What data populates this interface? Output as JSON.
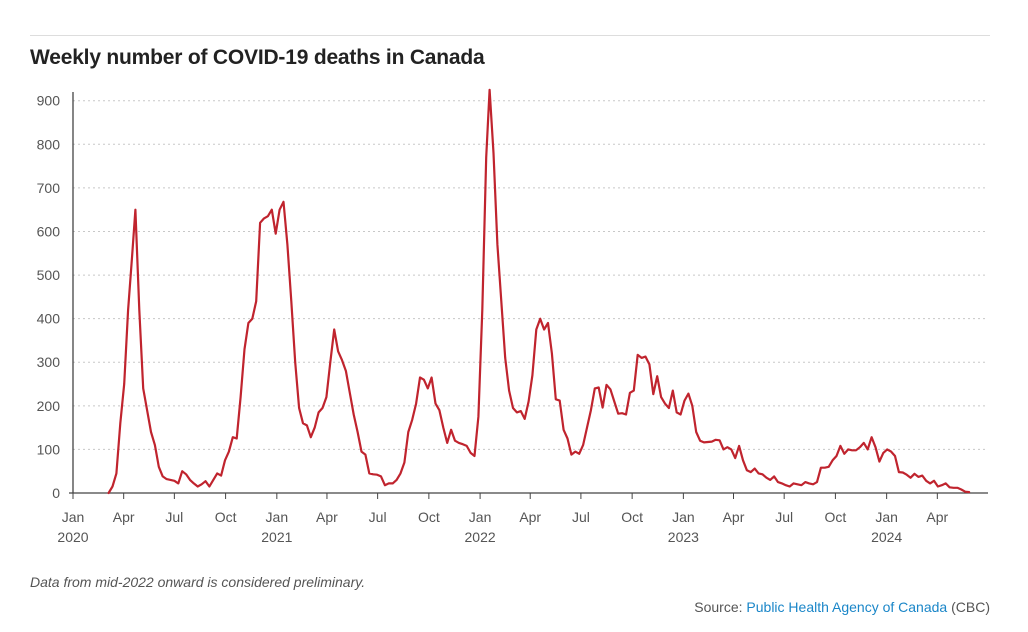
{
  "header": {
    "title": "Weekly number of COVID-19 deaths in Canada"
  },
  "footer": {
    "note": "Data from mid-2022 onward is considered preliminary.",
    "source_prefix": "Source:",
    "source_link": "Public Health Agency of Canada",
    "source_suffix": "(CBC)"
  },
  "chart_data": {
    "type": "line",
    "title": "Weekly number of COVID-19 deaths in Canada",
    "xlabel": "",
    "ylabel": "",
    "x_range": [
      "2020-01-01",
      "2024-07-01"
    ],
    "ylim": [
      0,
      920
    ],
    "y_ticks": [
      0,
      100,
      200,
      300,
      400,
      500,
      600,
      700,
      800,
      900
    ],
    "x_ticks": [
      {
        "date": "2020-01-01",
        "label": "Jan",
        "year": "2020"
      },
      {
        "date": "2020-04-01",
        "label": "Apr",
        "year": ""
      },
      {
        "date": "2020-07-01",
        "label": "Jul",
        "year": ""
      },
      {
        "date": "2020-10-01",
        "label": "Oct",
        "year": ""
      },
      {
        "date": "2021-01-01",
        "label": "Jan",
        "year": "2021"
      },
      {
        "date": "2021-04-01",
        "label": "Apr",
        "year": ""
      },
      {
        "date": "2021-07-01",
        "label": "Jul",
        "year": ""
      },
      {
        "date": "2021-10-01",
        "label": "Oct",
        "year": ""
      },
      {
        "date": "2022-01-01",
        "label": "Jan",
        "year": "2022"
      },
      {
        "date": "2022-04-01",
        "label": "Apr",
        "year": ""
      },
      {
        "date": "2022-07-01",
        "label": "Jul",
        "year": ""
      },
      {
        "date": "2022-10-01",
        "label": "Oct",
        "year": ""
      },
      {
        "date": "2023-01-01",
        "label": "Jan",
        "year": "2023"
      },
      {
        "date": "2023-04-01",
        "label": "Apr",
        "year": ""
      },
      {
        "date": "2023-07-01",
        "label": "Jul",
        "year": ""
      },
      {
        "date": "2023-10-01",
        "label": "Oct",
        "year": ""
      },
      {
        "date": "2024-01-01",
        "label": "Jan",
        "year": "2024"
      },
      {
        "date": "2024-04-01",
        "label": "Apr",
        "year": ""
      }
    ],
    "grid": "horizontal dashed",
    "line_color": "#c0242e",
    "series": [
      {
        "points": [
          [
            "2020-03-05",
            0
          ],
          [
            "2020-03-12",
            15
          ],
          [
            "2020-03-19",
            45
          ],
          [
            "2020-03-26",
            160
          ],
          [
            "2020-04-02",
            250
          ],
          [
            "2020-04-09",
            420
          ],
          [
            "2020-04-16",
            540
          ],
          [
            "2020-04-22",
            650
          ],
          [
            "2020-04-29",
            420
          ],
          [
            "2020-05-06",
            240
          ],
          [
            "2020-05-13",
            190
          ],
          [
            "2020-05-20",
            140
          ],
          [
            "2020-05-27",
            110
          ],
          [
            "2020-06-03",
            60
          ],
          [
            "2020-06-10",
            38
          ],
          [
            "2020-06-17",
            32
          ],
          [
            "2020-06-24",
            30
          ],
          [
            "2020-07-01",
            28
          ],
          [
            "2020-07-08",
            22
          ],
          [
            "2020-07-15",
            50
          ],
          [
            "2020-07-22",
            43
          ],
          [
            "2020-07-29",
            30
          ],
          [
            "2020-08-05",
            22
          ],
          [
            "2020-08-12",
            15
          ],
          [
            "2020-08-19",
            20
          ],
          [
            "2020-08-26",
            27
          ],
          [
            "2020-09-02",
            15
          ],
          [
            "2020-09-09",
            30
          ],
          [
            "2020-09-16",
            45
          ],
          [
            "2020-09-23",
            40
          ],
          [
            "2020-09-30",
            75
          ],
          [
            "2020-10-07",
            95
          ],
          [
            "2020-10-14",
            128
          ],
          [
            "2020-10-21",
            125
          ],
          [
            "2020-10-28",
            220
          ],
          [
            "2020-11-04",
            330
          ],
          [
            "2020-11-11",
            390
          ],
          [
            "2020-11-18",
            400
          ],
          [
            "2020-11-25",
            440
          ],
          [
            "2020-12-02",
            620
          ],
          [
            "2020-12-09",
            630
          ],
          [
            "2020-12-16",
            635
          ],
          [
            "2020-12-23",
            650
          ],
          [
            "2020-12-30",
            595
          ],
          [
            "2021-01-06",
            650
          ],
          [
            "2021-01-13",
            668
          ],
          [
            "2021-01-20",
            570
          ],
          [
            "2021-01-27",
            440
          ],
          [
            "2021-02-03",
            300
          ],
          [
            "2021-02-10",
            195
          ],
          [
            "2021-02-17",
            160
          ],
          [
            "2021-02-24",
            155
          ],
          [
            "2021-03-03",
            128
          ],
          [
            "2021-03-10",
            150
          ],
          [
            "2021-03-17",
            185
          ],
          [
            "2021-03-24",
            195
          ],
          [
            "2021-03-31",
            220
          ],
          [
            "2021-04-07",
            300
          ],
          [
            "2021-04-14",
            375
          ],
          [
            "2021-04-21",
            325
          ],
          [
            "2021-04-28",
            305
          ],
          [
            "2021-05-05",
            280
          ],
          [
            "2021-05-12",
            230
          ],
          [
            "2021-05-19",
            180
          ],
          [
            "2021-05-26",
            140
          ],
          [
            "2021-06-02",
            95
          ],
          [
            "2021-06-09",
            88
          ],
          [
            "2021-06-16",
            45
          ],
          [
            "2021-06-23",
            43
          ],
          [
            "2021-06-30",
            42
          ],
          [
            "2021-07-07",
            38
          ],
          [
            "2021-07-14",
            18
          ],
          [
            "2021-07-21",
            22
          ],
          [
            "2021-07-28",
            22
          ],
          [
            "2021-08-04",
            30
          ],
          [
            "2021-08-11",
            45
          ],
          [
            "2021-08-18",
            70
          ],
          [
            "2021-08-25",
            140
          ],
          [
            "2021-09-01",
            168
          ],
          [
            "2021-09-08",
            205
          ],
          [
            "2021-09-15",
            265
          ],
          [
            "2021-09-22",
            260
          ],
          [
            "2021-09-29",
            240
          ],
          [
            "2021-10-06",
            265
          ],
          [
            "2021-10-13",
            205
          ],
          [
            "2021-10-20",
            190
          ],
          [
            "2021-10-27",
            150
          ],
          [
            "2021-11-03",
            115
          ],
          [
            "2021-11-10",
            145
          ],
          [
            "2021-11-17",
            120
          ],
          [
            "2021-11-24",
            115
          ],
          [
            "2021-12-01",
            112
          ],
          [
            "2021-12-08",
            108
          ],
          [
            "2021-12-15",
            92
          ],
          [
            "2021-12-22",
            85
          ],
          [
            "2021-12-29",
            175
          ],
          [
            "2022-01-05",
            420
          ],
          [
            "2022-01-12",
            770
          ],
          [
            "2022-01-18",
            925
          ],
          [
            "2022-01-25",
            780
          ],
          [
            "2022-02-01",
            570
          ],
          [
            "2022-02-08",
            440
          ],
          [
            "2022-02-15",
            310
          ],
          [
            "2022-02-22",
            235
          ],
          [
            "2022-03-01",
            195
          ],
          [
            "2022-03-08",
            185
          ],
          [
            "2022-03-15",
            188
          ],
          [
            "2022-03-22",
            170
          ],
          [
            "2022-03-29",
            210
          ],
          [
            "2022-04-05",
            270
          ],
          [
            "2022-04-12",
            375
          ],
          [
            "2022-04-19",
            400
          ],
          [
            "2022-04-26",
            375
          ],
          [
            "2022-05-03",
            390
          ],
          [
            "2022-05-10",
            320
          ],
          [
            "2022-05-17",
            215
          ],
          [
            "2022-05-24",
            212
          ],
          [
            "2022-05-31",
            145
          ],
          [
            "2022-06-07",
            125
          ],
          [
            "2022-06-14",
            88
          ],
          [
            "2022-06-21",
            95
          ],
          [
            "2022-06-28",
            90
          ],
          [
            "2022-07-05",
            110
          ],
          [
            "2022-07-12",
            150
          ],
          [
            "2022-07-19",
            190
          ],
          [
            "2022-07-26",
            240
          ],
          [
            "2022-08-02",
            242
          ],
          [
            "2022-08-09",
            196
          ],
          [
            "2022-08-16",
            248
          ],
          [
            "2022-08-23",
            238
          ],
          [
            "2022-08-30",
            210
          ],
          [
            "2022-09-06",
            182
          ],
          [
            "2022-09-13",
            183
          ],
          [
            "2022-09-20",
            180
          ],
          [
            "2022-09-27",
            230
          ],
          [
            "2022-10-04",
            235
          ],
          [
            "2022-10-11",
            317
          ],
          [
            "2022-10-18",
            310
          ],
          [
            "2022-10-25",
            313
          ],
          [
            "2022-11-01",
            295
          ],
          [
            "2022-11-08",
            227
          ],
          [
            "2022-11-15",
            268
          ],
          [
            "2022-11-22",
            220
          ],
          [
            "2022-11-29",
            205
          ],
          [
            "2022-12-06",
            195
          ],
          [
            "2022-12-13",
            235
          ],
          [
            "2022-12-20",
            185
          ],
          [
            "2022-12-27",
            180
          ],
          [
            "2023-01-03",
            212
          ],
          [
            "2023-01-10",
            228
          ],
          [
            "2023-01-17",
            200
          ],
          [
            "2023-01-24",
            140
          ],
          [
            "2023-01-31",
            120
          ],
          [
            "2023-02-07",
            116
          ],
          [
            "2023-02-14",
            117
          ],
          [
            "2023-02-21",
            118
          ],
          [
            "2023-02-28",
            122
          ],
          [
            "2023-03-07",
            121
          ],
          [
            "2023-03-14",
            100
          ],
          [
            "2023-03-21",
            105
          ],
          [
            "2023-03-28",
            100
          ],
          [
            "2023-04-04",
            80
          ],
          [
            "2023-04-11",
            108
          ],
          [
            "2023-04-18",
            75
          ],
          [
            "2023-04-25",
            52
          ],
          [
            "2023-05-02",
            48
          ],
          [
            "2023-05-09",
            56
          ],
          [
            "2023-05-16",
            45
          ],
          [
            "2023-05-23",
            43
          ],
          [
            "2023-05-30",
            35
          ],
          [
            "2023-06-06",
            30
          ],
          [
            "2023-06-13",
            38
          ],
          [
            "2023-06-20",
            25
          ],
          [
            "2023-06-27",
            22
          ],
          [
            "2023-07-04",
            18
          ],
          [
            "2023-07-11",
            15
          ],
          [
            "2023-07-18",
            22
          ],
          [
            "2023-07-25",
            20
          ],
          [
            "2023-08-01",
            18
          ],
          [
            "2023-08-08",
            25
          ],
          [
            "2023-08-15",
            22
          ],
          [
            "2023-08-22",
            20
          ],
          [
            "2023-08-29",
            25
          ],
          [
            "2023-09-05",
            58
          ],
          [
            "2023-09-12",
            58
          ],
          [
            "2023-09-19",
            60
          ],
          [
            "2023-09-26",
            75
          ],
          [
            "2023-10-03",
            85
          ],
          [
            "2023-10-10",
            108
          ],
          [
            "2023-10-17",
            90
          ],
          [
            "2023-10-24",
            100
          ],
          [
            "2023-10-31",
            98
          ],
          [
            "2023-11-07",
            98
          ],
          [
            "2023-11-14",
            105
          ],
          [
            "2023-11-21",
            115
          ],
          [
            "2023-11-28",
            100
          ],
          [
            "2023-12-05",
            128
          ],
          [
            "2023-12-12",
            105
          ],
          [
            "2023-12-19",
            72
          ],
          [
            "2023-12-26",
            92
          ],
          [
            "2024-01-02",
            100
          ],
          [
            "2024-01-09",
            95
          ],
          [
            "2024-01-16",
            85
          ],
          [
            "2024-01-23",
            48
          ],
          [
            "2024-01-30",
            47
          ],
          [
            "2024-02-06",
            42
          ],
          [
            "2024-02-13",
            35
          ],
          [
            "2024-02-20",
            44
          ],
          [
            "2024-02-27",
            37
          ],
          [
            "2024-03-05",
            40
          ],
          [
            "2024-03-12",
            28
          ],
          [
            "2024-03-19",
            22
          ],
          [
            "2024-03-26",
            28
          ],
          [
            "2024-04-02",
            15
          ],
          [
            "2024-04-09",
            18
          ],
          [
            "2024-04-16",
            22
          ],
          [
            "2024-04-23",
            13
          ],
          [
            "2024-04-30",
            12
          ],
          [
            "2024-05-07",
            12
          ],
          [
            "2024-05-14",
            8
          ],
          [
            "2024-05-21",
            3
          ],
          [
            "2024-05-28",
            2
          ]
        ]
      }
    ]
  }
}
